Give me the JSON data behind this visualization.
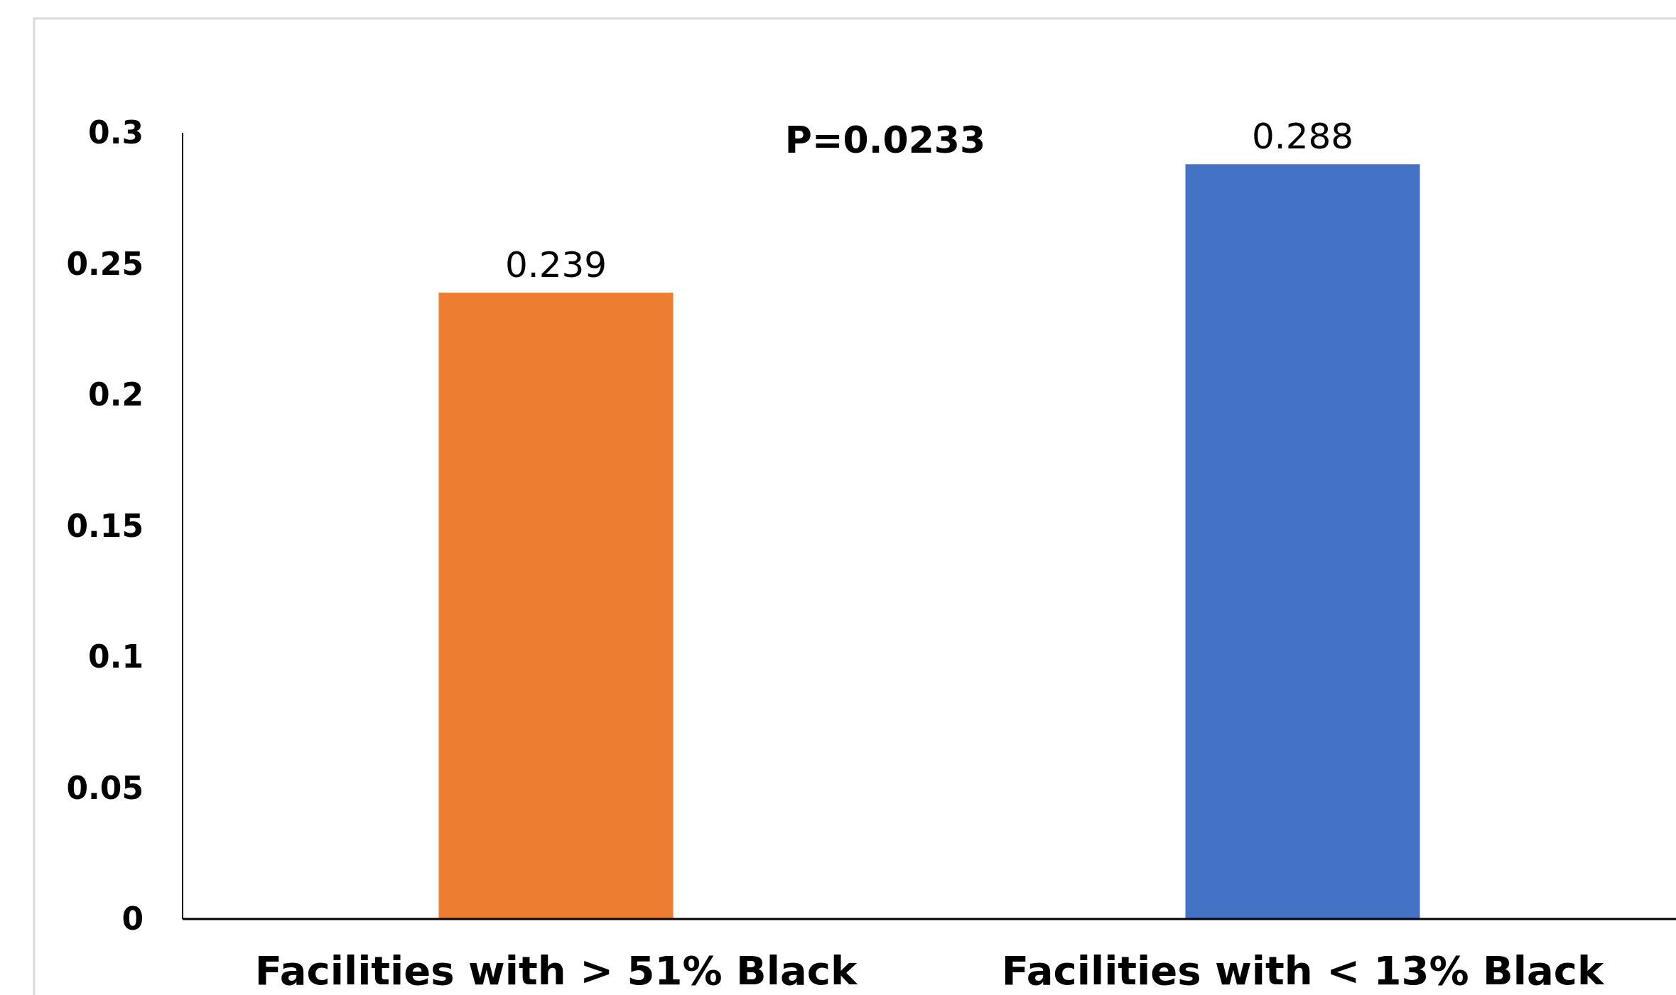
{
  "chart_data": {
    "type": "bar",
    "categories": [
      "Facilities with > 51% Black",
      "Facilities with < 13% Black"
    ],
    "values": [
      0.239,
      0.288
    ],
    "colors": [
      "#ed7d31",
      "#4472c4"
    ],
    "ylim": [
      0,
      0.3
    ],
    "yticks": [
      0,
      0.05,
      0.1,
      0.15,
      0.2,
      0.25,
      0.3
    ],
    "grid": false,
    "data_labels": true,
    "annotations": [
      "P=0.0233"
    ]
  }
}
